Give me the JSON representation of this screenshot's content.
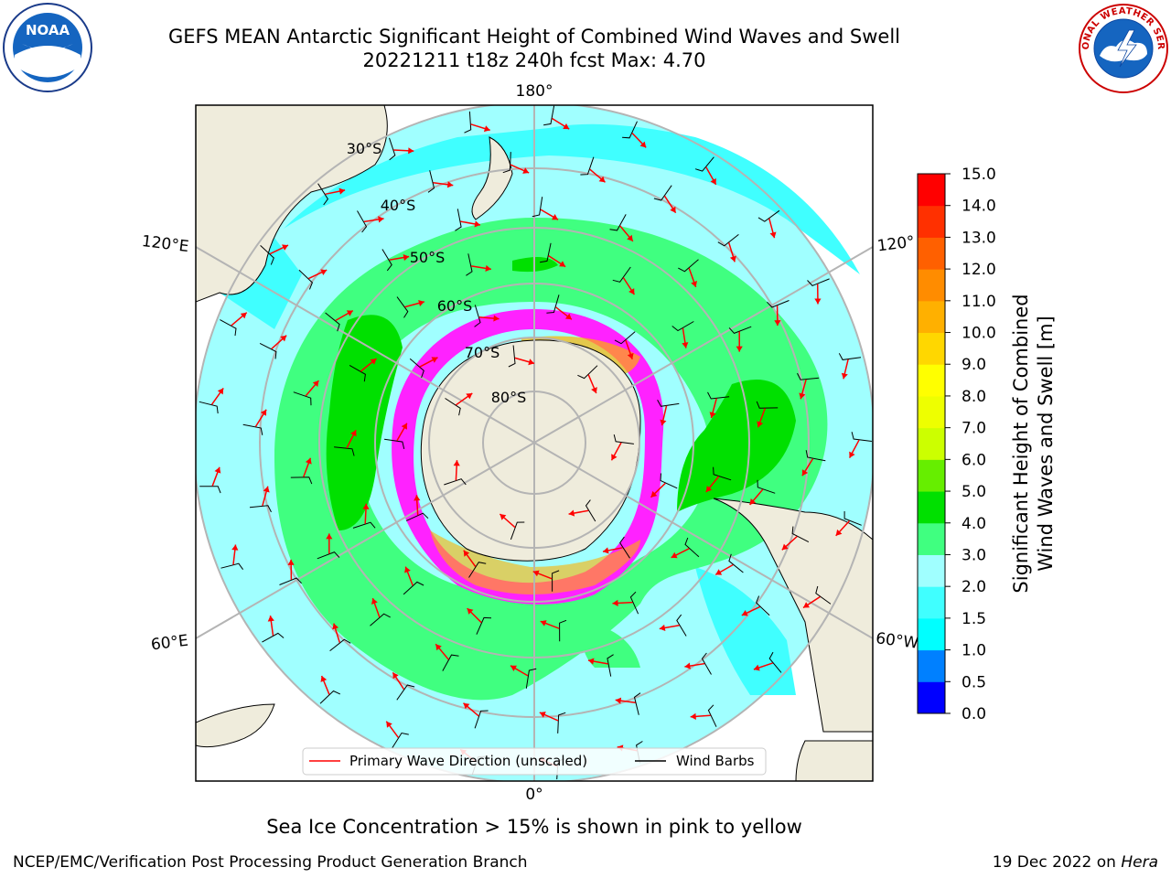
{
  "header": {
    "title_line1": "GEFS MEAN Antarctic Significant Height of Combined Wind Waves and Swell",
    "title_line2": "20221211 t18z 240h fcst   Max: 4.70"
  },
  "map": {
    "projection": "south-polar-stereographic",
    "lon_labels": {
      "top": "180°",
      "bottom": "0°",
      "upper_left": "120°E",
      "upper_right": "120°",
      "lower_left": "60°E",
      "lower_right": "60°W"
    },
    "lat_labels": [
      "30°S",
      "40°S",
      "50°S",
      "60°S",
      "70°S",
      "80°S"
    ],
    "legend": {
      "primary_wave": "Primary Wave Direction (unscaled)",
      "wind_barbs": "Wind Barbs"
    },
    "colors": {
      "land": "#efecdc",
      "ocean": "#ffffff",
      "grid": "#b4b4b4",
      "wave_arrow": "#ff0000",
      "wind_barb": "#000000",
      "ice": "#ff22ff"
    }
  },
  "colorbar": {
    "label_line1": "Significant Height of Combined",
    "label_line2": "Wind Waves and Swell [m]",
    "ticks": [
      "0.0",
      "0.5",
      "1.0",
      "1.5",
      "2.0",
      "3.0",
      "4.0",
      "5.0",
      "6.0",
      "7.0",
      "8.0",
      "9.0",
      "10.0",
      "11.0",
      "12.0",
      "13.0",
      "14.0",
      "15.0"
    ],
    "colors": [
      "#0000ff",
      "#0080ff",
      "#00ffff",
      "#40ffff",
      "#a0ffff",
      "#40ff80",
      "#00e000",
      "#66ee00",
      "#ccff00",
      "#eeff00",
      "#ffff00",
      "#ffd700",
      "#ffb000",
      "#ff8c00",
      "#ff6000",
      "#ff3000",
      "#ff0000"
    ]
  },
  "caption": "Sea Ice Concentration > 15% is shown in pink to yellow",
  "footer": {
    "left": "NCEP/EMC/Verification Post Processing Product Generation Branch",
    "right_prefix": "19 Dec 2022 on ",
    "right_italic": "Hera"
  },
  "logos": {
    "left": "NOAA",
    "right": "NATIONAL WEATHER SERVICE"
  }
}
